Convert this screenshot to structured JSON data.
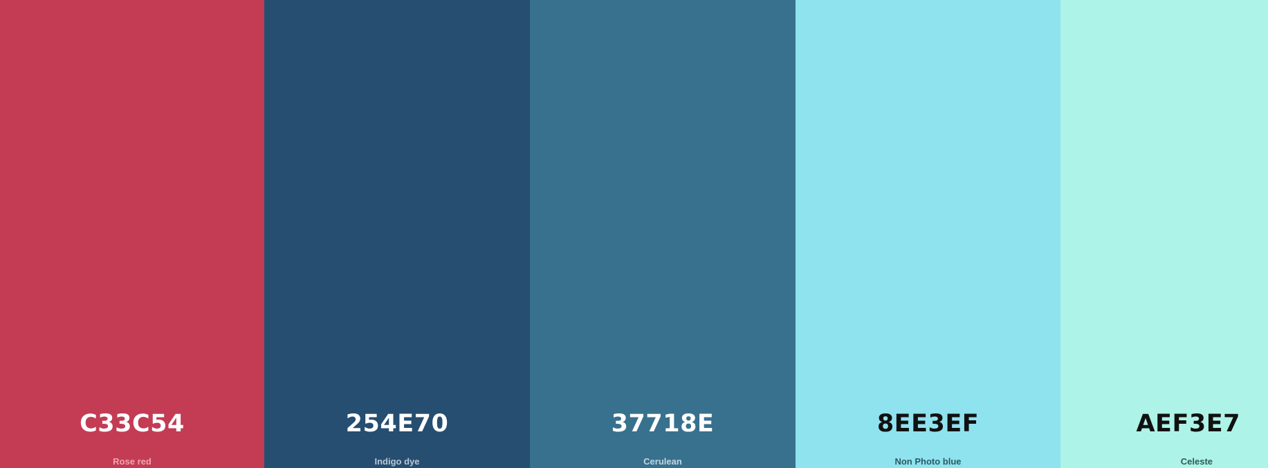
{
  "palette": {
    "swatches": [
      {
        "hex": "C33C54",
        "name": "Rose red",
        "color": "#C33C54"
      },
      {
        "hex": "254E70",
        "name": "Indigo dye",
        "color": "#254E70"
      },
      {
        "hex": "37718E",
        "name": "Cerulean",
        "color": "#37718E"
      },
      {
        "hex": "8EE3EF",
        "name": "Non Photo blue",
        "color": "#8EE3EF"
      },
      {
        "hex": "AEF3E7",
        "name": "Celeste",
        "color": "#AEF3E7"
      }
    ]
  }
}
